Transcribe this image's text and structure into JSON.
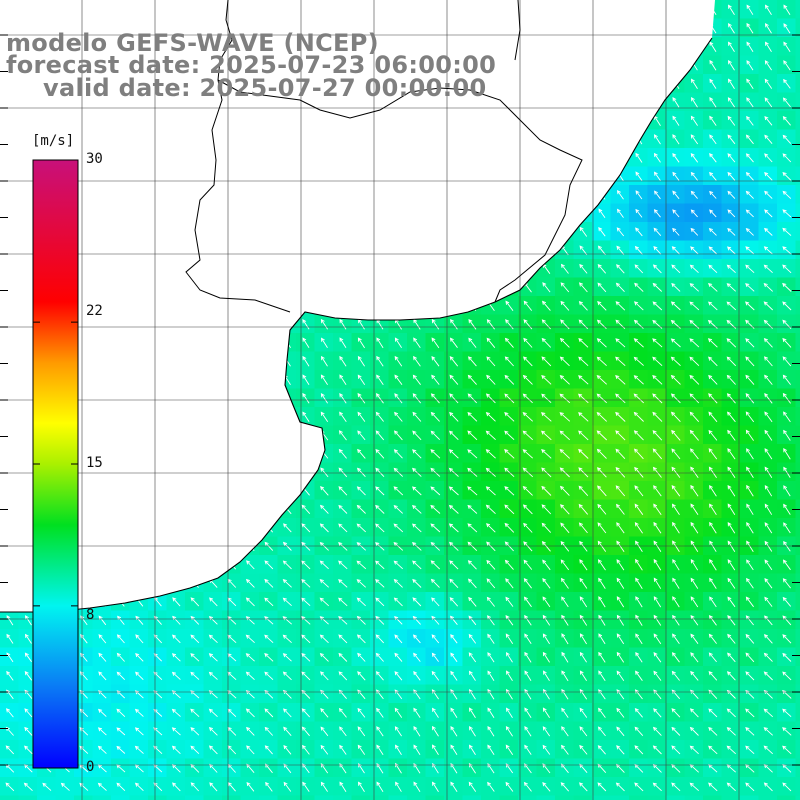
{
  "title": {
    "line1": "modelo GEFS-WAVE (NCEP)",
    "line2": "forecast date: 2025-07-23 06:00:00",
    "line3": "valid date: 2025-07-27 00:00:00"
  },
  "colorbar": {
    "unit_label": "[m/s]",
    "ticks": [
      {
        "label": "30",
        "value": 30
      },
      {
        "label": "22",
        "value": 22
      },
      {
        "label": "15",
        "value": 15
      },
      {
        "label": "8",
        "value": 8
      },
      {
        "label": "0",
        "value": 0
      }
    ],
    "range": [
      0,
      30
    ],
    "stops": [
      {
        "value": 0,
        "color": "#0000ff"
      },
      {
        "value": 4,
        "color": "#0a7af5"
      },
      {
        "value": 8,
        "color": "#00f5f0"
      },
      {
        "value": 12,
        "color": "#00e020"
      },
      {
        "value": 15,
        "color": "#aaf000"
      },
      {
        "value": 17,
        "color": "#ffff00"
      },
      {
        "value": 20,
        "color": "#ff9a00"
      },
      {
        "value": 23,
        "color": "#ff0000"
      },
      {
        "value": 30,
        "color": "#c8107a"
      }
    ]
  },
  "colors": {
    "land": "#ffffff",
    "coastline": "#000000",
    "grid": "#404040",
    "wind_arrow": "#ffffff",
    "title_text": "#7f7f7f"
  },
  "map": {
    "variable": "wind speed with direction arrows",
    "dominant_direction": "from southeast",
    "grid_lines": true
  }
}
